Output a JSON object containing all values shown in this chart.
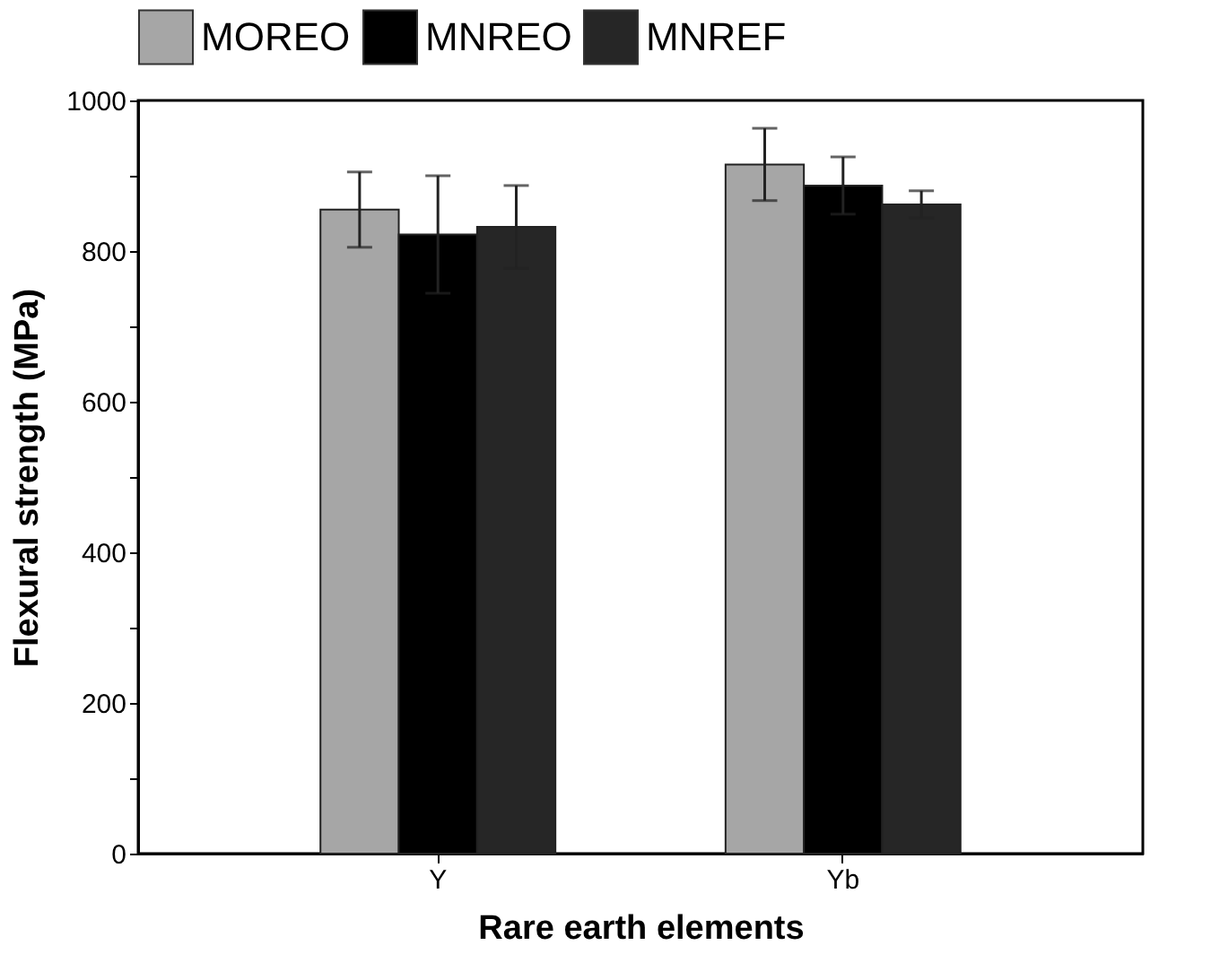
{
  "chart_data": {
    "type": "bar",
    "xlabel": "Rare earth elements",
    "ylabel": "Flexural strength (MPa)",
    "categories": [
      "Y",
      "Yb"
    ],
    "series": [
      {
        "name": "MOREO",
        "color": "#a6a6a6",
        "values": [
          855,
          915
        ],
        "errors": [
          50,
          48
        ]
      },
      {
        "name": "MNREO",
        "color": "#000000",
        "values": [
          822,
          887
        ],
        "errors": [
          78,
          38
        ]
      },
      {
        "name": "MNREF",
        "color": "#262626",
        "values": [
          832,
          862
        ],
        "errors": [
          55,
          18
        ]
      }
    ],
    "ylim": [
      0,
      1000
    ],
    "yticks": [
      0,
      {
        "value": 100,
        "label": null
      },
      200,
      {
        "value": 300,
        "label": null
      },
      400,
      {
        "value": 500,
        "label": null
      },
      600,
      {
        "value": 700,
        "label": null
      },
      800,
      {
        "value": 900,
        "label": null
      },
      1000
    ],
    "grid": false,
    "legend": "top"
  }
}
